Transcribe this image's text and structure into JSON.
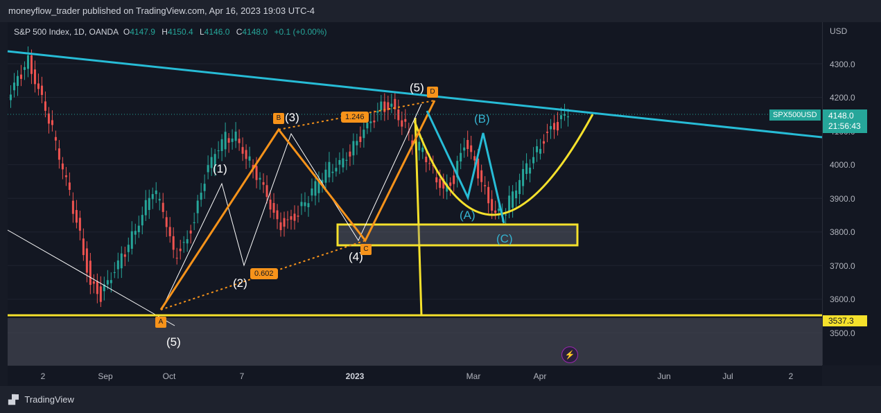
{
  "header": {
    "publisher_text": "moneyflow_trader published on TradingView.com, Apr 16, 2023 19:03 UTC-4"
  },
  "legend": {
    "symbol": "S&P 500 Index, 1D, OANDA",
    "open_key": "O",
    "open": "4147.9",
    "high_key": "H",
    "high": "4150.4",
    "low_key": "L",
    "low": "4146.0",
    "close_key": "C",
    "close": "4148.0",
    "change": "+0.1 (+0.00%)"
  },
  "footer": {
    "brand": "TradingView"
  },
  "chart_data": {
    "type": "candlestick",
    "y_unit": "USD",
    "y_ticks": [
      "4300.0",
      "4200.0",
      "4100.0",
      "4000.0",
      "3900.0",
      "3800.0",
      "3700.0",
      "3600.0",
      "3500.0"
    ],
    "x_ticks": [
      "2",
      "Sep",
      "Oct",
      "7",
      "2023",
      "Mar",
      "Apr",
      "Jun",
      "Jul",
      "2"
    ],
    "ticker_label": "SPX500USD",
    "last_price": "4148.0",
    "countdown": "21:56:43",
    "support_level": "3537.3",
    "close_path": [
      4180,
      4250,
      4310,
      4230,
      4140,
      4020,
      3910,
      3790,
      3650,
      3610,
      3660,
      3720,
      3790,
      3860,
      3930,
      3860,
      3730,
      3760,
      3840,
      3960,
      4030,
      4080,
      4090,
      4030,
      3970,
      3900,
      3820,
      3830,
      3860,
      3900,
      3950,
      3990,
      4010,
      4040,
      4080,
      4120,
      4170,
      4180,
      4130,
      4070,
      4040,
      3980,
      3930,
      3960,
      4060,
      4000,
      3920,
      3860,
      3870,
      3930,
      3990,
      4040,
      4100,
      4120,
      4148
    ],
    "wave_labels": {
      "w1": "(1)",
      "w2": "(2)",
      "w3": "(3)",
      "w4": "(4)",
      "w5": "(5)",
      "w5_low": "(5)",
      "a": "(A)",
      "b": "(B)",
      "c": "(C)"
    },
    "point_markers": {
      "a": "A",
      "b": "B",
      "c": "C",
      "d": "D"
    },
    "fib_ratios": {
      "bc": "0.602",
      "cd": "1.246"
    }
  }
}
